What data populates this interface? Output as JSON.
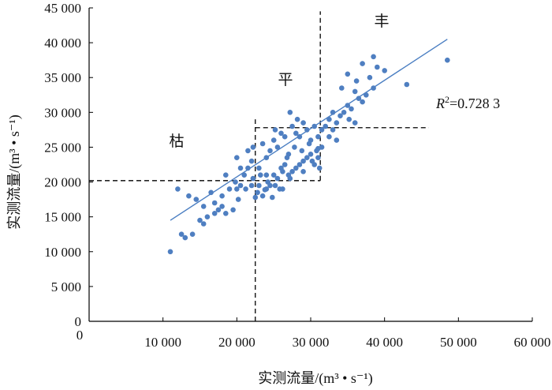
{
  "chart_data": {
    "type": "scatter",
    "xlabel": "实测流量/(m³ • s⁻¹)",
    "ylabel": "实测流量/(m³ • s⁻¹)",
    "xlim": [
      0,
      60000
    ],
    "ylim": [
      0,
      45000
    ],
    "x_ticks": [
      10000,
      20000,
      30000,
      40000,
      50000,
      60000
    ],
    "x_tick_labels": [
      "10 000",
      "20 000",
      "30 000",
      "40 000",
      "50 000",
      "60 000"
    ],
    "y_ticks": [
      0,
      5000,
      10000,
      15000,
      20000,
      25000,
      30000,
      35000,
      40000,
      45000
    ],
    "y_tick_labels": [
      "0",
      "5 000",
      "10 000",
      "15 000",
      "20 000",
      "25 000",
      "30 000",
      "35 000",
      "40 000",
      "45 000"
    ],
    "grid": false,
    "colors": {
      "points": "#4f7fc1",
      "trend": "#4a7ec2",
      "dividers": "#000000"
    },
    "region_labels": {
      "dry": "枯",
      "normal": "平",
      "wet": "丰"
    },
    "r2_label": {
      "prefix": "R",
      "sup": "2",
      "value": "=0.728 3"
    },
    "trendline": {
      "x": [
        11000,
        48500
      ],
      "y": [
        14500,
        40500
      ]
    },
    "dividers": {
      "dry_normal_h": {
        "y": 20200,
        "x": [
          0,
          31300
        ]
      },
      "dry_normal_v": {
        "x": 22500,
        "y": [
          0,
          29000
        ]
      },
      "normal_wet_h": {
        "y": 27800,
        "x": [
          22500,
          46000
        ]
      },
      "normal_wet_v": {
        "x": 31300,
        "y": [
          20200,
          44500
        ]
      }
    },
    "points": [
      [
        11000,
        10000
      ],
      [
        12500,
        12500
      ],
      [
        13000,
        12000
      ],
      [
        14000,
        12500
      ],
      [
        15000,
        14500
      ],
      [
        15500,
        14000
      ],
      [
        16000,
        15000
      ],
      [
        17000,
        15500
      ],
      [
        17500,
        16000
      ],
      [
        18000,
        16500
      ],
      [
        18500,
        15500
      ],
      [
        19500,
        16000
      ],
      [
        12000,
        19000
      ],
      [
        13500,
        18000
      ],
      [
        14500,
        17500
      ],
      [
        15500,
        16500
      ],
      [
        16500,
        18500
      ],
      [
        17000,
        17000
      ],
      [
        18000,
        18000
      ],
      [
        19000,
        19000
      ],
      [
        19800,
        20000
      ],
      [
        20000,
        19000
      ],
      [
        20200,
        17500
      ],
      [
        20500,
        19500
      ],
      [
        21000,
        21000
      ],
      [
        21200,
        19000
      ],
      [
        21500,
        22000
      ],
      [
        22000,
        19500
      ],
      [
        22200,
        20500
      ],
      [
        22500,
        17800
      ],
      [
        22800,
        18500
      ],
      [
        23000,
        19500
      ],
      [
        23200,
        21000
      ],
      [
        23500,
        18000
      ],
      [
        24000,
        19000
      ],
      [
        24200,
        20000
      ],
      [
        24500,
        19500
      ],
      [
        25000,
        21000
      ],
      [
        25200,
        19500
      ],
      [
        25500,
        20500
      ],
      [
        25800,
        19000
      ],
      [
        26000,
        22000
      ],
      [
        26200,
        21500
      ],
      [
        26500,
        22500
      ],
      [
        27000,
        21000
      ],
      [
        27200,
        20500
      ],
      [
        27500,
        21500
      ],
      [
        28000,
        22000
      ],
      [
        28500,
        22500
      ],
      [
        29000,
        23000
      ],
      [
        29500,
        23500
      ],
      [
        30000,
        24000
      ],
      [
        30200,
        23000
      ],
      [
        30500,
        22500
      ],
      [
        30800,
        24500
      ],
      [
        31000,
        23500
      ],
      [
        20500,
        22000
      ],
      [
        21500,
        24500
      ],
      [
        22000,
        23000
      ],
      [
        23500,
        25500
      ],
      [
        24000,
        23500
      ],
      [
        24500,
        24500
      ],
      [
        25000,
        26000
      ],
      [
        25500,
        25000
      ],
      [
        26000,
        27000
      ],
      [
        26500,
        26500
      ],
      [
        27000,
        24000
      ],
      [
        27500,
        28000
      ],
      [
        28000,
        27000
      ],
      [
        28500,
        26500
      ],
      [
        29000,
        28500
      ],
      [
        29500,
        27500
      ],
      [
        30000,
        26000
      ],
      [
        30500,
        28000
      ],
      [
        31000,
        26500
      ],
      [
        31500,
        27500
      ],
      [
        32000,
        28000
      ],
      [
        32500,
        29000
      ],
      [
        33000,
        27500
      ],
      [
        33500,
        28500
      ],
      [
        34000,
        29500
      ],
      [
        34500,
        30000
      ],
      [
        35000,
        31000
      ],
      [
        35200,
        29000
      ],
      [
        35500,
        30500
      ],
      [
        36000,
        33000
      ],
      [
        36500,
        32000
      ],
      [
        37000,
        31500
      ],
      [
        37500,
        32500
      ],
      [
        38000,
        35000
      ],
      [
        38500,
        33500
      ],
      [
        39000,
        36500
      ],
      [
        35000,
        35500
      ],
      [
        37000,
        37000
      ],
      [
        38500,
        38000
      ],
      [
        40000,
        36000
      ],
      [
        43000,
        34000
      ],
      [
        48500,
        37500
      ],
      [
        23000,
        22000
      ],
      [
        24000,
        21000
      ],
      [
        26800,
        23500
      ],
      [
        27800,
        25000
      ],
      [
        28800,
        24500
      ],
      [
        29800,
        25500
      ],
      [
        31500,
        25000
      ],
      [
        32500,
        26500
      ],
      [
        33500,
        26000
      ],
      [
        36000,
        28500
      ],
      [
        18500,
        21000
      ],
      [
        20000,
        23500
      ],
      [
        22200,
        25000
      ],
      [
        26200,
        19000
      ],
      [
        29000,
        21500
      ],
      [
        33000,
        30000
      ],
      [
        34200,
        33500
      ],
      [
        36200,
        34500
      ],
      [
        31200,
        22000
      ],
      [
        25200,
        27500
      ],
      [
        27200,
        30000
      ],
      [
        28200,
        29000
      ],
      [
        31000,
        24800
      ],
      [
        24800,
        17800
      ],
      [
        23800,
        18900
      ]
    ]
  }
}
